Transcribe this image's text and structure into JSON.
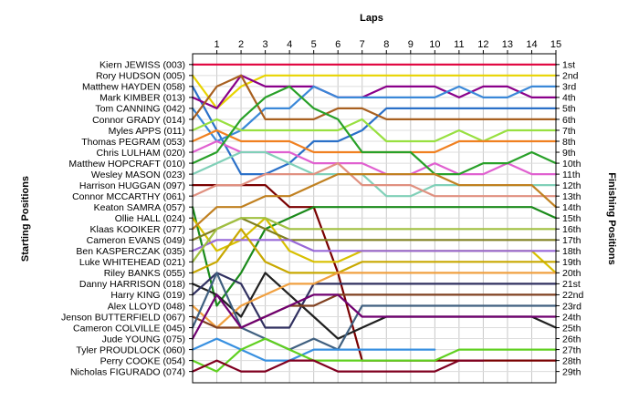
{
  "chart_data": {
    "type": "line",
    "title": "",
    "xlabel": "Laps",
    "ylabel_left": "Starting Positions",
    "ylabel_right": "Finishing Positions",
    "grid": true,
    "x": [
      0,
      1,
      2,
      3,
      4,
      5,
      6,
      7,
      8,
      9,
      10,
      11,
      12,
      13,
      14,
      15
    ],
    "laps_labels": [
      "1",
      "2",
      "3",
      "4",
      "5",
      "6",
      "7",
      "8",
      "9",
      "10",
      "11",
      "12",
      "13",
      "14",
      "15"
    ],
    "starting_labels": [
      "Kiern JEWISS (003)",
      "Rory HUDSON (005)",
      "Matthew HAYDEN (058)",
      "Mark KIMBER (013)",
      "Tom CANNING (042)",
      "Connor GRADY (014)",
      "Myles APPS (011)",
      "Thomas PEGRAM (053)",
      "Chris LULHAM (020)",
      "Matthew HOPCRAFT (010)",
      "Wesley MASON (023)",
      "Harrison HUGGAN (097)",
      "Connor MCCARTHY (061)",
      "Keaton SAMRA (057)",
      "Ollie HALL (024)",
      "Klaas KOOIKER (077)",
      "Cameron EVANS (049)",
      "Ben KASPERCZAK (035)",
      "Luke WHITEHEAD (021)",
      "Riley BANKS (055)",
      "Danny HARRISON (018)",
      "Harry KING (019)",
      "Alex LLOYD (048)",
      "Jenson BUTTERFIELD (067)",
      "Cameron COLVILLE (045)",
      "Jude YOUNG (075)",
      "Tyler PROUDLOCK (060)",
      "Perry COOKE (054)",
      "Nicholas FIGURADO (074)"
    ],
    "finishing_labels": [
      "1st",
      "2nd",
      "3rd",
      "4th",
      "5th",
      "6th",
      "7th",
      "8th",
      "9th",
      "10th",
      "11th",
      "12th",
      "13th",
      "14th",
      "15th",
      "16th",
      "17th",
      "18th",
      "19th",
      "20th",
      "21st",
      "22nd",
      "23rd",
      "24th",
      "25th",
      "26th",
      "27th",
      "28th",
      "29th"
    ],
    "series": [
      {
        "color": "#e0003c",
        "values": [
          1,
          1,
          1,
          1,
          1,
          1,
          1,
          1,
          1,
          1,
          1,
          1,
          1,
          1,
          1,
          1
        ]
      },
      {
        "color": "#e8d400",
        "values": [
          2,
          5,
          3,
          2,
          2,
          2,
          2,
          2,
          2,
          2,
          2,
          2,
          2,
          2,
          2,
          2
        ]
      },
      {
        "color": "#2a70c8",
        "values": [
          3,
          7,
          11,
          11,
          10,
          8,
          8,
          7,
          5,
          5,
          5,
          5,
          5,
          5,
          5,
          5
        ]
      },
      {
        "color": "#8a008a",
        "values": [
          4,
          5,
          2,
          3,
          3,
          3,
          4,
          4,
          3,
          3,
          3,
          4,
          3,
          3,
          4,
          4
        ]
      },
      {
        "color": "#3a88d8",
        "values": [
          5,
          8,
          7,
          5,
          5,
          3,
          4,
          4,
          4,
          4,
          4,
          3,
          4,
          4,
          3,
          3
        ]
      },
      {
        "color": "#a86020",
        "values": [
          6,
          3,
          2,
          6,
          6,
          6,
          5,
          5,
          6,
          6,
          6,
          6,
          6,
          6,
          6,
          6
        ]
      },
      {
        "color": "#98e040",
        "values": [
          7,
          6,
          7,
          7,
          7,
          7,
          7,
          6,
          8,
          8,
          8,
          7,
          8,
          7,
          7,
          7
        ]
      },
      {
        "color": "#f08020",
        "values": [
          8,
          7,
          8,
          8,
          8,
          9,
          9,
          9,
          9,
          9,
          9,
          8,
          8,
          8,
          8,
          8
        ]
      },
      {
        "color": "#e060d0",
        "values": [
          9,
          8,
          9,
          9,
          9,
          10,
          10,
          10,
          11,
          11,
          10,
          11,
          11,
          10,
          11,
          11
        ]
      },
      {
        "color": "#28a028",
        "values": [
          10,
          9,
          6,
          4,
          3,
          5,
          6,
          9,
          9,
          9,
          11,
          11,
          10,
          10,
          9,
          10
        ]
      },
      {
        "color": "#80d0b8",
        "values": [
          11,
          10,
          9,
          9,
          10,
          11,
          11,
          11,
          13,
          13,
          12,
          12,
          12,
          12,
          12,
          12
        ]
      },
      {
        "color": "#7a0000",
        "values": [
          12,
          12,
          12,
          12,
          14,
          14,
          20,
          28,
          28,
          28,
          28,
          28,
          28,
          28,
          28,
          28
        ]
      },
      {
        "color": "#e09080",
        "values": [
          13,
          12,
          12,
          11,
          11,
          11,
          10,
          12,
          12,
          12,
          13,
          13,
          13,
          13,
          13,
          13
        ]
      },
      {
        "color": "#1a8a1a",
        "values": [
          14,
          23,
          20,
          16,
          15,
          14,
          14,
          14,
          14,
          14,
          14,
          14,
          14,
          14,
          14,
          15
        ]
      },
      {
        "color": "#d8c000",
        "values": [
          15,
          18,
          17,
          15,
          18,
          19,
          19,
          18,
          18,
          18,
          18,
          18,
          18,
          18,
          18,
          20
        ]
      },
      {
        "color": "#c08020",
        "values": [
          16,
          14,
          14,
          13,
          13,
          12,
          11,
          11,
          11,
          11,
          11,
          12,
          12,
          12,
          12,
          14
        ]
      },
      {
        "color": "#808020",
        "values": [
          17,
          16,
          15,
          16,
          17,
          17,
          17,
          17,
          17,
          17,
          17,
          17,
          17,
          17,
          17,
          17
        ]
      },
      {
        "color": "#9868d8",
        "values": [
          18,
          17,
          17,
          17,
          17,
          18,
          18,
          18,
          18,
          18,
          18,
          18,
          18,
          18,
          18,
          18
        ]
      },
      {
        "color": "#a0c040",
        "values": [
          19,
          16,
          15,
          15,
          16,
          16,
          16,
          16,
          16,
          16,
          16,
          16,
          16,
          16,
          16,
          16
        ]
      },
      {
        "color": "#c8a800",
        "values": [
          20,
          19,
          16,
          19,
          20,
          20,
          20,
          19,
          19,
          19,
          19,
          19,
          19,
          19,
          19,
          19
        ]
      },
      {
        "color": "#202020",
        "values": [
          21,
          22,
          24,
          20,
          22,
          24,
          26,
          25,
          24,
          24,
          24,
          24,
          24,
          24,
          24,
          25
        ]
      },
      {
        "color": "#303060",
        "values": [
          22,
          20,
          21,
          25,
          25,
          21,
          21,
          21,
          21,
          21,
          21,
          21,
          21,
          21,
          21,
          21
        ]
      },
      {
        "color": "#f0a040",
        "values": [
          23,
          25,
          23,
          22,
          21,
          21,
          20,
          20,
          20,
          20,
          20,
          20,
          20,
          20,
          20,
          20
        ]
      },
      {
        "color": "#804020",
        "values": [
          24,
          25,
          25,
          24,
          23,
          23,
          22,
          22,
          22,
          22,
          22,
          22,
          22,
          22,
          22,
          22
        ]
      },
      {
        "color": "#406080",
        "values": [
          25,
          20,
          25,
          26,
          27,
          26,
          27,
          23,
          23,
          23,
          23,
          23,
          23,
          23,
          23,
          23
        ]
      },
      {
        "color": "#700070",
        "values": [
          26,
          22,
          25,
          24,
          23,
          22,
          22,
          24,
          24,
          24,
          24,
          24,
          24,
          24,
          24,
          24
        ]
      },
      {
        "color": "#3890e0",
        "values": [
          27,
          26,
          27,
          28,
          28,
          27,
          27,
          27,
          27,
          27,
          27,
          null,
          null,
          null,
          null,
          null
        ]
      },
      {
        "color": "#60d020",
        "values": [
          28,
          29,
          27,
          26,
          27,
          28,
          28,
          28,
          28,
          28,
          28,
          27,
          27,
          27,
          27,
          27
        ]
      },
      {
        "color": "#800020",
        "values": [
          29,
          28,
          29,
          29,
          28,
          28,
          29,
          29,
          29,
          29,
          29,
          28,
          28,
          null,
          null,
          null
        ]
      }
    ]
  }
}
